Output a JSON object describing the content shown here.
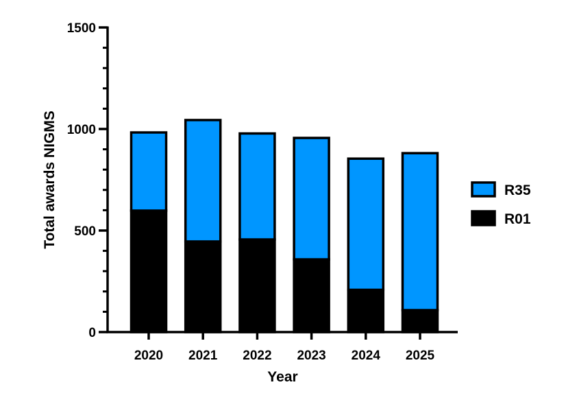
{
  "chart_data": {
    "type": "bar",
    "stacked": true,
    "categories": [
      "2020",
      "2021",
      "2022",
      "2023",
      "2024",
      "2025"
    ],
    "series": [
      {
        "name": "R01",
        "color": "#000000",
        "values": [
          598,
          446,
          456,
          358,
          208,
          108
        ]
      },
      {
        "name": "R35",
        "color": "#0096FF",
        "values": [
          385,
          598,
          522,
          598,
          646,
          773
        ]
      }
    ],
    "totals": [
      983,
      1044,
      978,
      956,
      854,
      881
    ],
    "xlabel": "Year",
    "ylabel": "Total awards NIGMS",
    "ylim": [
      0,
      1500
    ],
    "yticks_major": [
      0,
      500,
      1000,
      1500
    ],
    "yticks_minor_step": 100,
    "grid": false,
    "legend": {
      "position": "right",
      "entries": [
        {
          "name": "R35",
          "color": "#0096FF"
        },
        {
          "name": "R01",
          "color": "#000000"
        }
      ]
    }
  }
}
